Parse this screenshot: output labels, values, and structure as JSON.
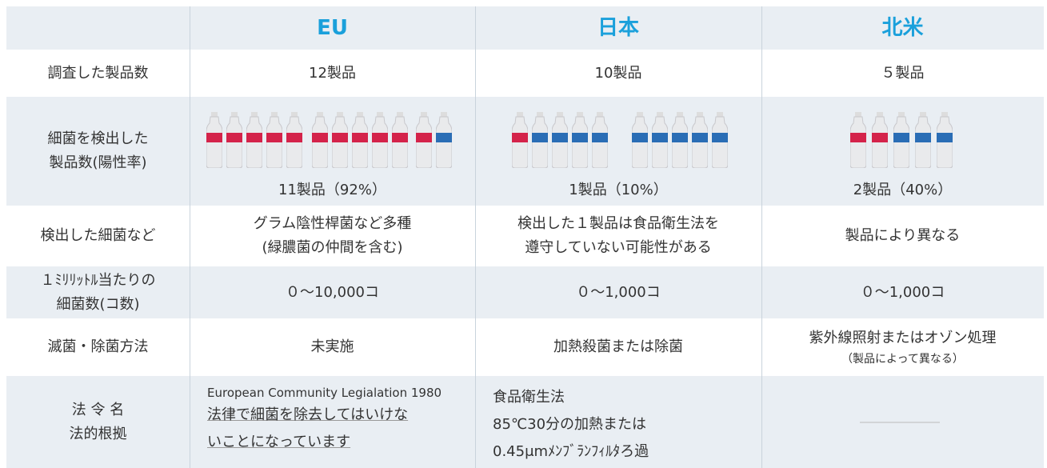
{
  "table": {
    "header": [
      "EU",
      "日本",
      "北米"
    ],
    "rows": [
      {
        "label": [
          "調査した製品数"
        ],
        "cells": [
          [
            "12製品"
          ],
          [
            "10製品"
          ],
          [
            "５製品"
          ]
        ]
      },
      {
        "label": [
          "細菌を検出した",
          "製品数(陽性率)"
        ],
        "cells": [
          [
            "11製品（92%）"
          ],
          [
            "1製品（10%）"
          ],
          [
            "2製品（40%）"
          ]
        ]
      },
      {
        "label": [
          "検出した細菌など"
        ],
        "cells": [
          [
            "グラム陰性桿菌など多種",
            "(緑膿菌の仲間を含む)"
          ],
          [
            "検出した１製品は食品衛生法を",
            "遵守していない可能性がある"
          ],
          [
            "製品により異なる"
          ]
        ]
      },
      {
        "label": [
          "１ﾐﾘﾘｯﾄﾙ当たりの",
          "細菌数(コ数)"
        ],
        "cells": [
          [
            "０～10,000コ"
          ],
          [
            "０～1,000コ"
          ],
          [
            "０～1,000コ"
          ]
        ]
      },
      {
        "label": [
          "滅菌・除菌方法"
        ],
        "cells": [
          [
            "未実施"
          ],
          [
            "加熱殺菌または除菌"
          ],
          [
            "紫外線照射またはオゾン処理",
            "（製品によって異なる）"
          ]
        ]
      },
      {
        "label": [
          "法 令 名",
          "法的根拠"
        ],
        "cells": [
          [
            "European Community Legialation 1980",
            "法律で細菌を除去してはいけな",
            "いことになっています"
          ],
          [
            "食品衛生法",
            "85℃30分の加熱または",
            "0.45μmﾒﾝﾌﾞﾗﾝﾌｨﾙﾀろ過"
          ],
          []
        ]
      }
    ]
  }
}
